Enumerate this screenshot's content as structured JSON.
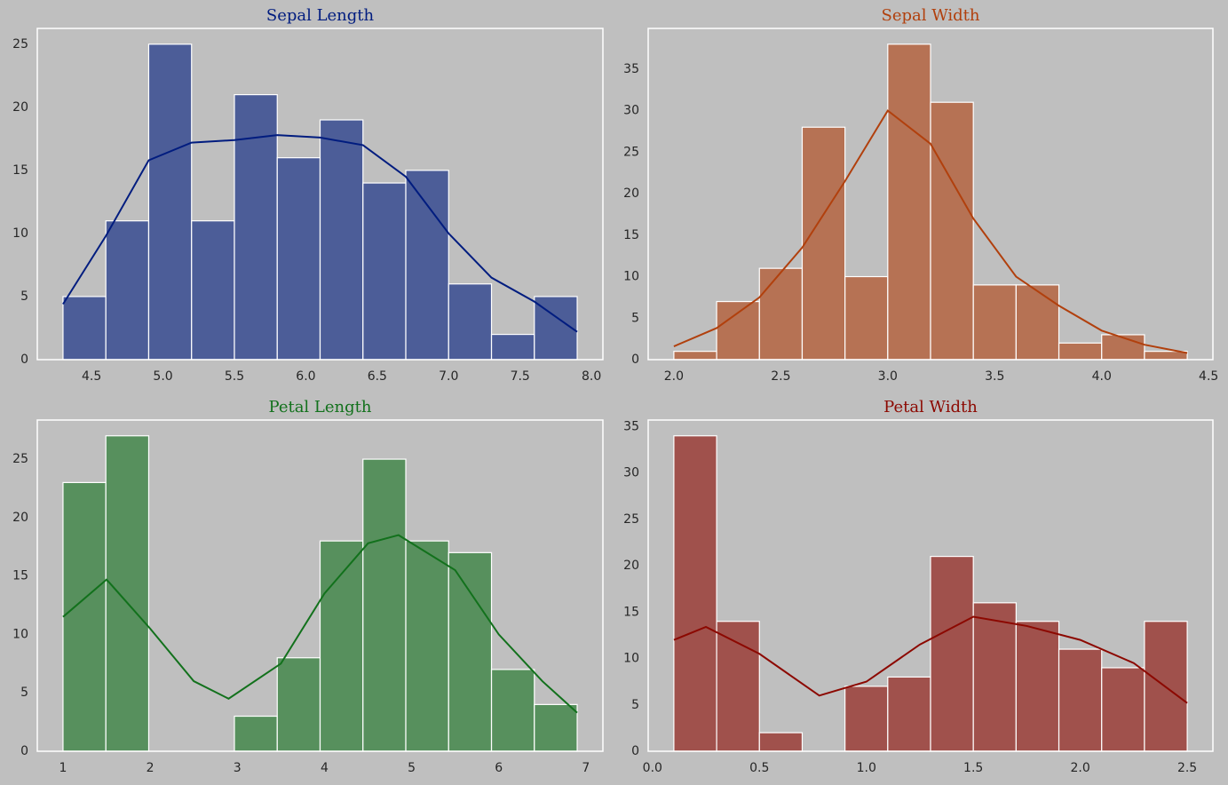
{
  "chart_data": [
    {
      "type": "histogram",
      "title": "Sepal Length",
      "color": "#001c7f",
      "grid": false,
      "bins": [
        4.3,
        4.6,
        4.9,
        5.2,
        5.5,
        5.8,
        6.1,
        6.4,
        6.7,
        7.0,
        7.3,
        7.6,
        7.9
      ],
      "counts": [
        5,
        11,
        25,
        11,
        21,
        16,
        19,
        14,
        15,
        6,
        2,
        5
      ],
      "kde": {
        "x": [
          4.3,
          4.6,
          4.9,
          5.2,
          5.5,
          5.8,
          6.1,
          6.4,
          6.7,
          7.0,
          7.3,
          7.6,
          7.9
        ],
        "y": [
          4.4,
          9.8,
          15.8,
          17.2,
          17.4,
          17.8,
          17.6,
          17.0,
          14.5,
          10.0,
          6.5,
          4.6,
          2.2
        ]
      },
      "xlim": [
        4.12,
        8.08
      ],
      "ylim": [
        0,
        26.25
      ],
      "xticks": [
        4.5,
        {
          "value": 5,
          "label": "5.0"
        },
        5.5,
        {
          "value": 6,
          "label": "6.0"
        },
        6.5,
        {
          "value": 7,
          "label": "7.0"
        },
        7.5,
        {
          "value": 8,
          "label": "8.0"
        }
      ],
      "yticks": [
        0,
        5,
        10,
        15,
        20,
        25
      ]
    },
    {
      "type": "histogram",
      "title": "Sepal Width",
      "color": "#b1400d",
      "grid": false,
      "bins": [
        2.0,
        2.2,
        2.4,
        2.6,
        2.8,
        3.0,
        3.2,
        3.4,
        3.6,
        3.8,
        4.0,
        4.2,
        4.4
      ],
      "counts": [
        1,
        7,
        11,
        28,
        10,
        38,
        31,
        9,
        9,
        2,
        3,
        1
      ],
      "kde": {
        "x": [
          2.0,
          2.2,
          2.4,
          2.6,
          2.8,
          3.0,
          3.2,
          3.4,
          3.6,
          3.8,
          4.0,
          4.2,
          4.4
        ],
        "y": [
          1.6,
          3.8,
          7.5,
          13.5,
          21.5,
          30.0,
          26.0,
          17.0,
          10.0,
          6.5,
          3.5,
          1.8,
          0.8
        ]
      },
      "xlim": [
        1.88,
        4.52
      ],
      "ylim": [
        0,
        39.9
      ],
      "xticks": [
        {
          "value": 2,
          "label": "2.0"
        },
        2.5,
        {
          "value": 3,
          "label": "3.0"
        },
        3.5,
        {
          "value": 4,
          "label": "4.0"
        },
        4.5
      ],
      "yticks": [
        0,
        5,
        10,
        15,
        20,
        25,
        30,
        35
      ]
    },
    {
      "type": "histogram",
      "title": "Petal Length",
      "color": "#12711c",
      "grid": false,
      "bins": [
        1.0,
        1.4917,
        1.9833,
        2.475,
        2.9667,
        3.4583,
        3.95,
        4.4417,
        4.9333,
        5.425,
        5.9167,
        6.4083,
        6.9
      ],
      "counts": [
        23,
        27,
        0,
        0,
        3,
        8,
        18,
        25,
        18,
        17,
        7,
        4
      ],
      "kde": {
        "x": [
          1.0,
          1.5,
          2.0,
          2.5,
          2.9,
          3.5,
          4.0,
          4.5,
          4.85,
          5.5,
          6.0,
          6.5,
          6.9
        ],
        "y": [
          11.5,
          14.7,
          10.5,
          6.0,
          4.5,
          7.5,
          13.5,
          17.8,
          18.5,
          15.5,
          10.0,
          6.0,
          3.3
        ]
      },
      "xlim": [
        0.705,
        7.195
      ],
      "ylim": [
        0,
        28.35
      ],
      "xticks": [
        1,
        2,
        3,
        4,
        5,
        6,
        7
      ],
      "yticks": [
        0,
        5,
        10,
        15,
        20,
        25
      ]
    },
    {
      "type": "histogram",
      "title": "Petal Width",
      "color": "#8c0800",
      "grid": false,
      "bins": [
        0.1,
        0.3,
        0.5,
        0.7,
        0.9,
        1.1,
        1.3,
        1.5,
        1.7,
        1.9,
        2.1,
        2.3,
        2.5
      ],
      "counts": [
        34,
        14,
        2,
        0,
        7,
        8,
        21,
        16,
        14,
        11,
        9,
        14
      ],
      "kde": {
        "x": [
          0.1,
          0.25,
          0.5,
          0.78,
          1.0,
          1.25,
          1.5,
          1.75,
          2.0,
          2.25,
          2.5
        ],
        "y": [
          12.0,
          13.4,
          10.5,
          6.0,
          7.5,
          11.5,
          14.5,
          13.5,
          12.0,
          9.5,
          5.2
        ]
      },
      "xlim": [
        -0.02,
        2.62
      ],
      "ylim": [
        0,
        35.7
      ],
      "xticks": [
        {
          "value": 0,
          "label": "0.0"
        },
        0.5,
        {
          "value": 1,
          "label": "1.0"
        },
        1.5,
        {
          "value": 2,
          "label": "2.0"
        },
        2.5
      ],
      "yticks": [
        0,
        5,
        10,
        15,
        20,
        25,
        30,
        35
      ]
    }
  ]
}
